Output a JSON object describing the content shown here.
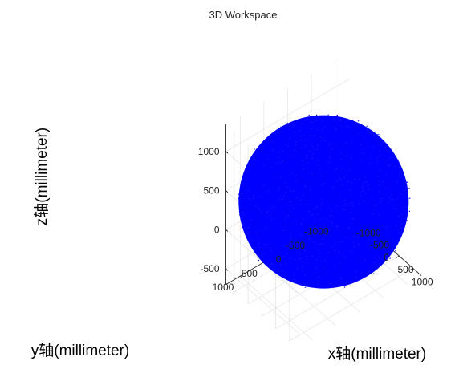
{
  "chart_data": {
    "type": "scatter",
    "title": "3D Workspace",
    "xlabel": "x轴(millimeter)",
    "ylabel": "y轴(millimeter)",
    "zlabel": "z轴(millimeter)",
    "x_ticks": [
      "-1000",
      "-500",
      "0",
      "500",
      "1000"
    ],
    "y_ticks": [
      "-1000",
      "-500",
      "0",
      "500",
      "1000"
    ],
    "z_ticks": [
      "-500",
      "0",
      "500",
      "1000"
    ],
    "xlim": [
      -1300,
      1300
    ],
    "ylim": [
      -1300,
      1300
    ],
    "zlim": [
      -700,
      1350
    ],
    "grid": true,
    "series": [
      {
        "color": "#0000ff",
        "marker": "point",
        "shape": "sphere",
        "center": [
          0,
          0,
          300
        ],
        "radius": 1050
      }
    ]
  }
}
